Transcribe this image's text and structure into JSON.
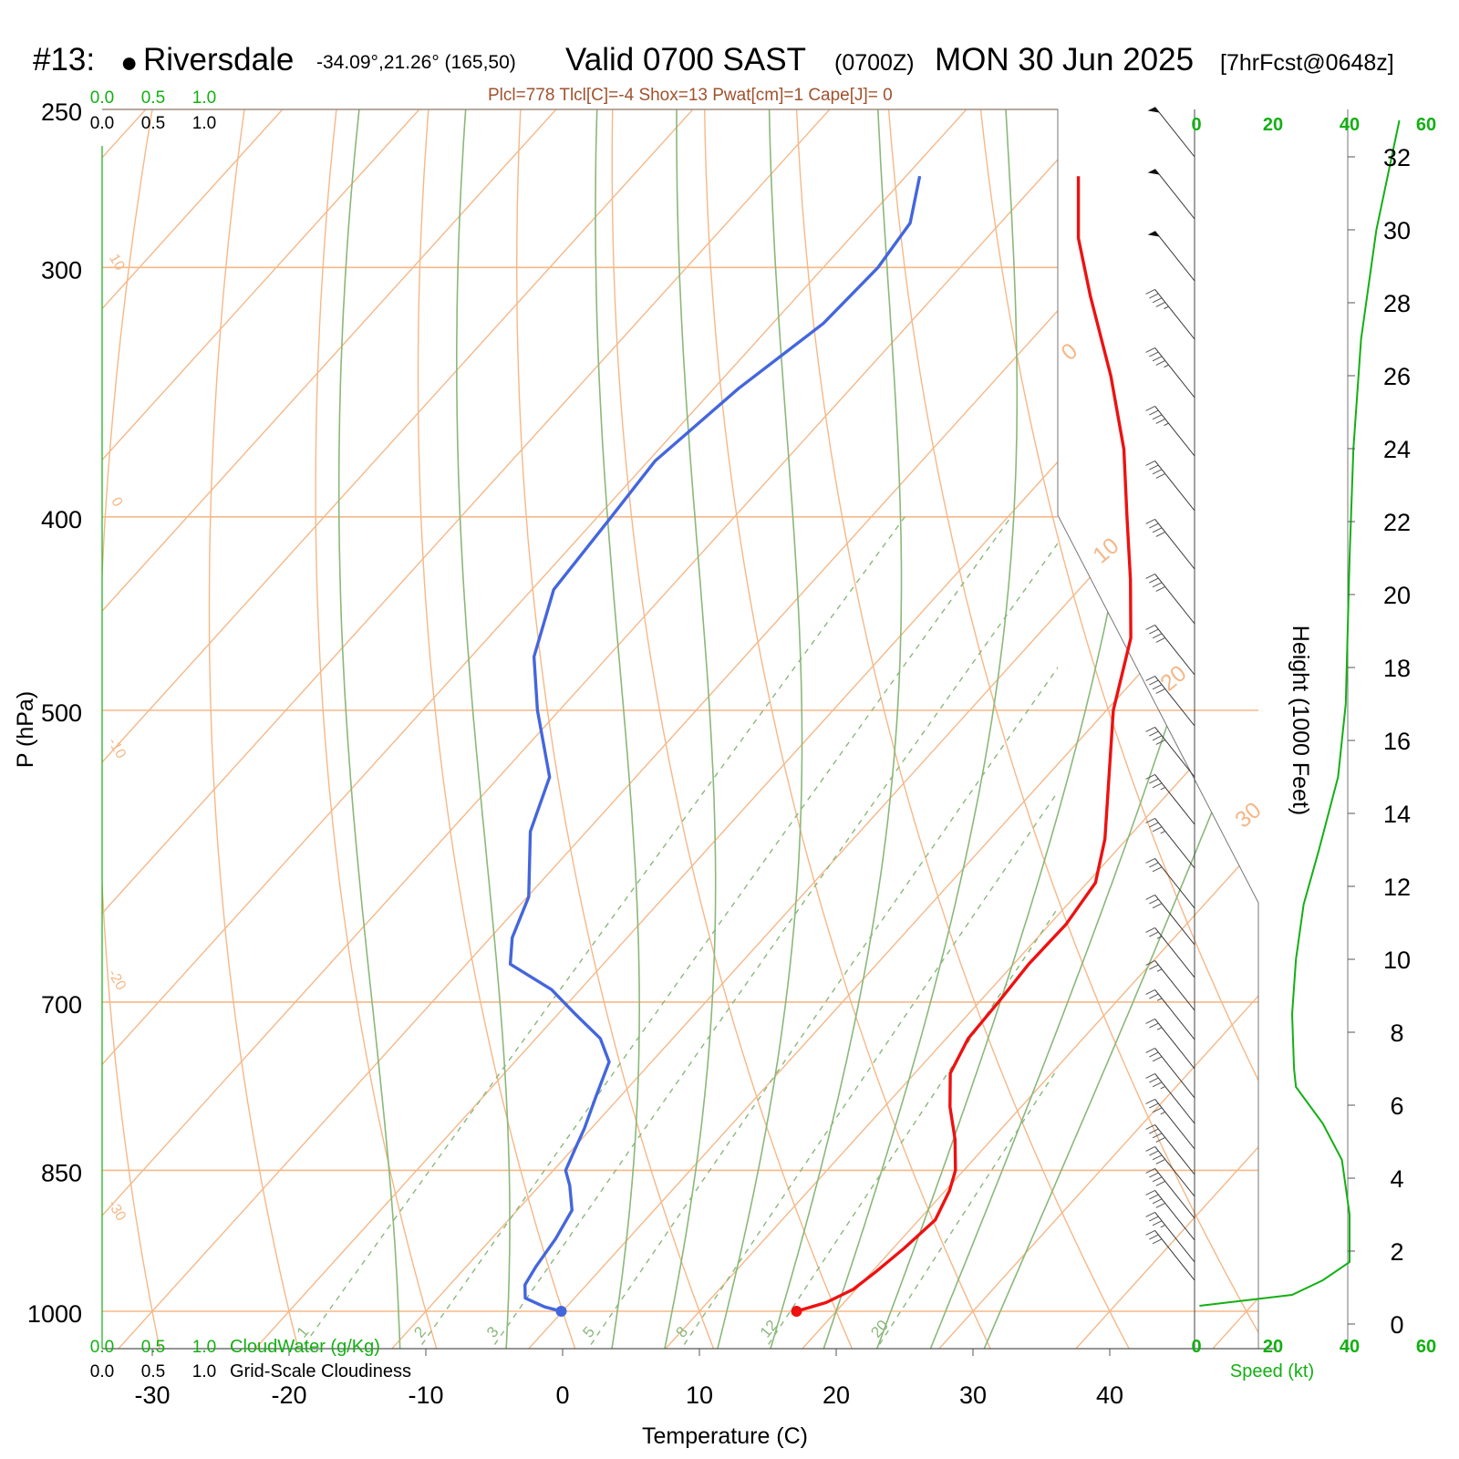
{
  "header": {
    "id": "#13:",
    "station_dot": "●",
    "station": "Riversdale",
    "coords": "-34.09°,21.26° (165,50)",
    "valid": "Valid 0700 SAST",
    "zulu": "(0700Z)",
    "date": "MON 30 Jun 2025",
    "forecast": "[7hrFcst@0648z]"
  },
  "params_line": "Plcl=778 Tlcl[C]=-4 Shox=13 Pwat[cm]=1 Cape[J]= 0",
  "colors": {
    "temperature": "#ee1111",
    "dewpoint": "#4466dd",
    "isotherm_isobar": "#f5b888",
    "dry_adiabat": "#f5b888",
    "moist_adiabat": "#8ab87a",
    "mixing_ratio": "#8ab87a",
    "wind_speed": "#12b012",
    "params": "#a0522d"
  },
  "chart_data": {
    "type": "line",
    "subtype": "skew-T log-p",
    "xlabel": "Temperature (C)",
    "ylabel": "P (hPa)",
    "right_ylabel": "Height (1000 Feet)",
    "x_ticks": [
      "-30",
      "-20",
      "-10",
      "0",
      "10",
      "20",
      "30",
      "40"
    ],
    "pressure_ticks": [
      "250",
      "300",
      "400",
      "500",
      "700",
      "850",
      "1000"
    ],
    "height_ticks": [
      "0",
      "2",
      "4",
      "6",
      "8",
      "10",
      "12",
      "14",
      "16",
      "18",
      "20",
      "22",
      "24",
      "26",
      "28",
      "30",
      "32"
    ],
    "series": [
      {
        "name": "Temperature",
        "points": [
          {
            "p": 1000,
            "t": 17.1
          },
          {
            "p": 990,
            "t": 18.7
          },
          {
            "p": 975,
            "t": 19.8
          },
          {
            "p": 955,
            "t": 20.3
          },
          {
            "p": 930,
            "t": 20.8
          },
          {
            "p": 900,
            "t": 21.2
          },
          {
            "p": 870,
            "t": 20.3
          },
          {
            "p": 850,
            "t": 19.4
          },
          {
            "p": 820,
            "t": 17.3
          },
          {
            "p": 790,
            "t": 14.8
          },
          {
            "p": 760,
            "t": 12.6
          },
          {
            "p": 730,
            "t": 11.6
          },
          {
            "p": 700,
            "t": 11.4
          },
          {
            "p": 670,
            "t": 11.1
          },
          {
            "p": 640,
            "t": 11.2
          },
          {
            "p": 610,
            "t": 10.6
          },
          {
            "p": 580,
            "t": 8.4
          },
          {
            "p": 500,
            "t": 0.5
          },
          {
            "p": 460,
            "t": -3.0
          },
          {
            "p": 430,
            "t": -6.9
          },
          {
            "p": 400,
            "t": -11.3
          },
          {
            "p": 370,
            "t": -16.0
          },
          {
            "p": 340,
            "t": -21.8
          },
          {
            "p": 310,
            "t": -28.6
          },
          {
            "p": 290,
            "t": -33.3
          },
          {
            "p": 270,
            "t": -37.4
          }
        ]
      },
      {
        "name": "Dewpoint",
        "points": [
          {
            "p": 1000,
            "t": -0.1
          },
          {
            "p": 995,
            "t": -1.6
          },
          {
            "p": 985,
            "t": -3.6
          },
          {
            "p": 970,
            "t": -4.5
          },
          {
            "p": 950,
            "t": -4.9
          },
          {
            "p": 920,
            "t": -5.3
          },
          {
            "p": 890,
            "t": -6.0
          },
          {
            "p": 865,
            "t": -7.8
          },
          {
            "p": 850,
            "t": -9.1
          },
          {
            "p": 830,
            "t": -9.8
          },
          {
            "p": 810,
            "t": -10.5
          },
          {
            "p": 780,
            "t": -11.8
          },
          {
            "p": 750,
            "t": -13.1
          },
          {
            "p": 730,
            "t": -15.3
          },
          {
            "p": 710,
            "t": -18.7
          },
          {
            "p": 690,
            "t": -22.1
          },
          {
            "p": 670,
            "t": -26.8
          },
          {
            "p": 650,
            "t": -28.4
          },
          {
            "p": 620,
            "t": -29.9
          },
          {
            "p": 575,
            "t": -34.1
          },
          {
            "p": 540,
            "t": -36.3
          },
          {
            "p": 500,
            "t": -41.6
          },
          {
            "p": 470,
            "t": -45.4
          },
          {
            "p": 435,
            "t": -48.4
          },
          {
            "p": 400,
            "t": -49.0
          },
          {
            "p": 375,
            "t": -49.5
          },
          {
            "p": 345,
            "t": -48.2
          },
          {
            "p": 320,
            "t": -46.3
          },
          {
            "p": 300,
            "t": -46.0
          },
          {
            "p": 285,
            "t": -46.6
          },
          {
            "p": 270,
            "t": -49.0
          }
        ]
      },
      {
        "name": "Speed (kt)",
        "points": [
          {
            "h": 0.5,
            "s": 0.8
          },
          {
            "h": 0.8,
            "s": 25.0
          },
          {
            "h": 1.2,
            "s": 33.0
          },
          {
            "h": 1.7,
            "s": 40.0
          },
          {
            "h": 3.0,
            "s": 40.0
          },
          {
            "h": 4.5,
            "s": 38.0
          },
          {
            "h": 5.5,
            "s": 33.0
          },
          {
            "h": 6.5,
            "s": 26.0
          },
          {
            "h": 7.0,
            "s": 25.5
          },
          {
            "h": 8.5,
            "s": 25.0
          },
          {
            "h": 10.0,
            "s": 26.0
          },
          {
            "h": 11.5,
            "s": 28.0
          },
          {
            "h": 13.0,
            "s": 32.0
          },
          {
            "h": 15.0,
            "s": 37.0
          },
          {
            "h": 17.0,
            "s": 39.0
          },
          {
            "h": 21.0,
            "s": 40.0
          },
          {
            "h": 24.0,
            "s": 41.0
          },
          {
            "h": 27.0,
            "s": 43.0
          },
          {
            "h": 30.0,
            "s": 47.0
          },
          {
            "h": 32.0,
            "s": 51.0
          },
          {
            "h": 33.0,
            "s": 53.0
          }
        ]
      }
    ],
    "surface_points": {
      "temperature": 17.1,
      "dewpoint": -0.1
    },
    "isotherm_labels": [
      "0",
      "10",
      "20",
      "30"
    ],
    "isotherm_labels_left": [
      "10",
      "0",
      "-10",
      "-20",
      "-30"
    ],
    "mixing_ratio_labels": [
      "1",
      "2",
      "3",
      "5",
      "8",
      "12",
      "20"
    ],
    "cloud_scale": {
      "top_green": [
        "0.0",
        "0.5",
        "1.0"
      ],
      "top_black": [
        "0.0",
        "0.5",
        "1.0"
      ],
      "bottom_green": [
        "0.0",
        "0.5",
        "1.0"
      ],
      "bottom_black": [
        "0.0",
        "0.5",
        "1.0"
      ],
      "cloudwater_label": "CloudWater (g/Kg)",
      "cloudiness_label": "Grid-Scale Cloudiness"
    },
    "speed_axis": {
      "ticks": [
        "0",
        "20",
        "40",
        "60"
      ],
      "label": "Speed (kt)"
    },
    "wind_barbs": [
      {
        "h": 32.0,
        "s": 50
      },
      {
        "h": 30.3,
        "s": 50
      },
      {
        "h": 28.6,
        "s": 50
      },
      {
        "h": 27.0,
        "s": 45
      },
      {
        "h": 25.4,
        "s": 45
      },
      {
        "h": 23.8,
        "s": 45
      },
      {
        "h": 22.3,
        "s": 40
      },
      {
        "h": 20.7,
        "s": 40
      },
      {
        "h": 19.2,
        "s": 40
      },
      {
        "h": 17.8,
        "s": 40
      },
      {
        "h": 16.4,
        "s": 40
      },
      {
        "h": 15.0,
        "s": 40
      },
      {
        "h": 13.7,
        "s": 35
      },
      {
        "h": 12.5,
        "s": 35
      },
      {
        "h": 11.4,
        "s": 30
      },
      {
        "h": 10.4,
        "s": 30
      },
      {
        "h": 9.5,
        "s": 25
      },
      {
        "h": 8.6,
        "s": 25
      },
      {
        "h": 7.8,
        "s": 25
      },
      {
        "h": 7.0,
        "s": 25
      },
      {
        "h": 6.2,
        "s": 30
      },
      {
        "h": 5.5,
        "s": 35
      },
      {
        "h": 4.8,
        "s": 35
      },
      {
        "h": 4.1,
        "s": 40
      },
      {
        "h": 3.5,
        "s": 40
      },
      {
        "h": 2.9,
        "s": 40
      },
      {
        "h": 2.3,
        "s": 40
      },
      {
        "h": 1.7,
        "s": 35
      },
      {
        "h": 1.2,
        "s": 30
      }
    ]
  }
}
